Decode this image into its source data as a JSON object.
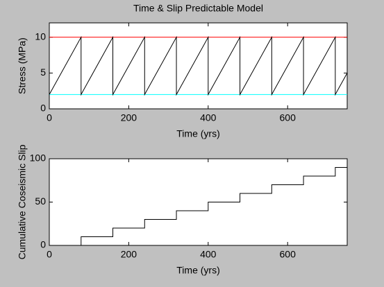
{
  "chart_data": [
    {
      "type": "line",
      "title": "Time & Slip Predictable Model",
      "xlabel": "Time (yrs)",
      "ylabel": "Stress (MPa)",
      "xlim": [
        0,
        750
      ],
      "ylim": [
        0,
        12
      ],
      "xticks": [
        0,
        200,
        400,
        600
      ],
      "yticks": [
        0,
        5,
        10
      ],
      "series": [
        {
          "color": "#ff0000",
          "x": [
            0,
            750
          ],
          "values": [
            10,
            10
          ]
        },
        {
          "color": "#00ffff",
          "x": [
            0,
            750
          ],
          "values": [
            2,
            2
          ]
        },
        {
          "color": "#000000",
          "x": [
            0,
            80,
            80,
            160,
            160,
            240,
            240,
            320,
            320,
            400,
            400,
            480,
            480,
            560,
            560,
            640,
            640,
            720,
            720,
            750
          ],
          "values": [
            2,
            10,
            2,
            10,
            2,
            10,
            2,
            10,
            2,
            10,
            2,
            10,
            2,
            10,
            2,
            10,
            2,
            10,
            2,
            5
          ]
        }
      ]
    },
    {
      "type": "line",
      "xlabel": "Time (yrs)",
      "ylabel": "Cumulative Coseismic Slip",
      "xlim": [
        0,
        750
      ],
      "ylim": [
        0,
        100
      ],
      "xticks": [
        0,
        200,
        400,
        600
      ],
      "yticks": [
        0,
        50,
        100
      ],
      "series": [
        {
          "color": "#000000",
          "x": [
            0,
            80,
            80,
            160,
            160,
            240,
            240,
            320,
            320,
            400,
            400,
            480,
            480,
            560,
            560,
            640,
            640,
            720,
            720,
            750
          ],
          "values": [
            0,
            0,
            10,
            10,
            20,
            20,
            30,
            30,
            40,
            40,
            50,
            50,
            60,
            60,
            70,
            70,
            80,
            80,
            90,
            90
          ]
        }
      ]
    }
  ]
}
